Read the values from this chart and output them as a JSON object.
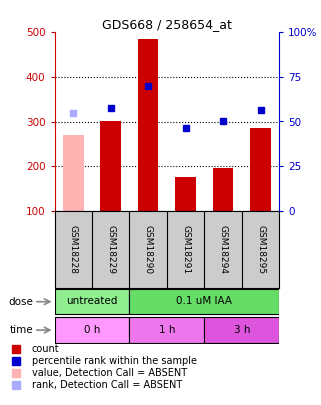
{
  "title": "GDS668 / 258654_at",
  "samples": [
    "GSM18228",
    "GSM18229",
    "GSM18290",
    "GSM18291",
    "GSM18294",
    "GSM18295"
  ],
  "bar_values": [
    270,
    300,
    485,
    175,
    195,
    285
  ],
  "bar_colors": [
    "#ffb3b3",
    "#cc0000",
    "#cc0000",
    "#cc0000",
    "#cc0000",
    "#cc0000"
  ],
  "rank_values": [
    55,
    57.5,
    70,
    46.25,
    50,
    56.25
  ],
  "rank_colors": [
    "#aaaaff",
    "#0000cc",
    "#0000cc",
    "#0000cc",
    "#0000cc",
    "#0000cc"
  ],
  "ylim_left": [
    100,
    500
  ],
  "ylim_right": [
    0,
    100
  ],
  "yticks_left": [
    100,
    200,
    300,
    400,
    500
  ],
  "yticks_right": [
    0,
    25,
    50,
    75,
    100
  ],
  "ytick_labels_right": [
    "0",
    "25",
    "50",
    "75",
    "100%"
  ],
  "dose_labels": [
    {
      "text": "untreated",
      "start": 0,
      "end": 2,
      "color": "#90ee90"
    },
    {
      "text": "0.1 uM IAA",
      "start": 2,
      "end": 6,
      "color": "#66dd66"
    }
  ],
  "time_labels": [
    {
      "text": "0 h",
      "start": 0,
      "end": 2,
      "color": "#ff99ff"
    },
    {
      "text": "1 h",
      "start": 2,
      "end": 4,
      "color": "#ee77ee"
    },
    {
      "text": "3 h",
      "start": 4,
      "end": 6,
      "color": "#dd55dd"
    }
  ],
  "dose_arrow_label": "dose",
  "time_arrow_label": "time",
  "legend_items": [
    {
      "label": "count",
      "color": "#cc0000"
    },
    {
      "label": "percentile rank within the sample",
      "color": "#0000cc"
    },
    {
      "label": "value, Detection Call = ABSENT",
      "color": "#ffb3b3"
    },
    {
      "label": "rank, Detection Call = ABSENT",
      "color": "#aaaaff"
    }
  ],
  "bar_width": 0.55,
  "background_color": "#ffffff",
  "left_axis_color": "#cc0000",
  "right_axis_color": "#0000cc",
  "sample_box_color": "#cccccc"
}
